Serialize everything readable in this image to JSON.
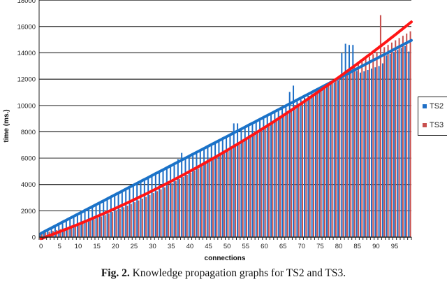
{
  "chart_data": {
    "type": "bar",
    "title": "",
    "xlabel": "connections",
    "ylabel": "time (ms.)",
    "ylim": [
      0,
      18000
    ],
    "yticks": [
      0,
      2000,
      4000,
      6000,
      8000,
      10000,
      12000,
      14000,
      16000,
      18000
    ],
    "xtick_step": 5,
    "grid": true,
    "legend_position": "right",
    "categories_range": [
      0,
      99
    ],
    "trendlines": true,
    "series": [
      {
        "name": "TS2",
        "color": "#1f6fc6",
        "trend_color": "#1a72c8",
        "values": [
          300,
          445,
          590,
          735,
          880,
          1025,
          1170,
          1315,
          1460,
          1605,
          1750,
          1895,
          2040,
          2185,
          2330,
          2475,
          2620,
          2765,
          2910,
          3055,
          3200,
          3345,
          3490,
          3635,
          3780,
          3925,
          4070,
          4215,
          4360,
          4505,
          4650,
          4795,
          4940,
          5085,
          5230,
          5375,
          5520,
          5930,
          6400,
          5955,
          6100,
          6245,
          6390,
          6535,
          6680,
          6825,
          6970,
          7115,
          7260,
          7405,
          7550,
          7695,
          8640,
          8640,
          8130,
          8275,
          8420,
          8565,
          8710,
          8855,
          9000,
          9145,
          9290,
          9435,
          9580,
          9725,
          9870,
          11030,
          11510,
          10305,
          10450,
          10595,
          10740,
          10885,
          11030,
          11175,
          11320,
          11465,
          11610,
          11755,
          11900,
          13990,
          14690,
          14600,
          14600,
          12625,
          12500,
          12600,
          12700,
          12800,
          12900,
          13000,
          13200,
          13800,
          13930,
          14075,
          14220,
          14365,
          14510,
          14100
        ]
      },
      {
        "name": "TS3",
        "color": "#c8504e",
        "trend_color": "#ff1515",
        "values": [
          300,
          352,
          408,
          468,
          531,
          599,
          670,
          745,
          823,
          905,
          991,
          1079,
          1172,
          1267,
          1366,
          1468,
          1573,
          1681,
          1793,
          1907,
          2024,
          2144,
          2267,
          2392,
          2521,
          2652,
          2785,
          2921,
          3059,
          3200,
          3344,
          3489,
          3637,
          3787,
          3939,
          4093,
          4249,
          4407,
          4567,
          4729,
          4892,
          5057,
          5224,
          5393,
          5563,
          5734,
          5907,
          6082,
          6257,
          6434,
          6613,
          6792,
          6972,
          7154,
          7336,
          7519,
          7704,
          7889,
          8074,
          8261,
          8448,
          8636,
          8824,
          9013,
          9202,
          9391,
          9581,
          9770,
          9961,
          10151,
          10342,
          10532,
          10722,
          10912,
          11102,
          11292,
          11482,
          11671,
          11860,
          12049,
          12236,
          12423,
          12610,
          12796,
          12981,
          13165,
          13349,
          13532,
          13714,
          13895,
          14075,
          16860,
          14430,
          14605,
          14780,
          14953,
          15124,
          15295,
          15464,
          15634
        ]
      }
    ]
  },
  "caption": {
    "label": "Fig. 2.",
    "text": " Knowledge propagation graphs for TS2 and TS3."
  }
}
